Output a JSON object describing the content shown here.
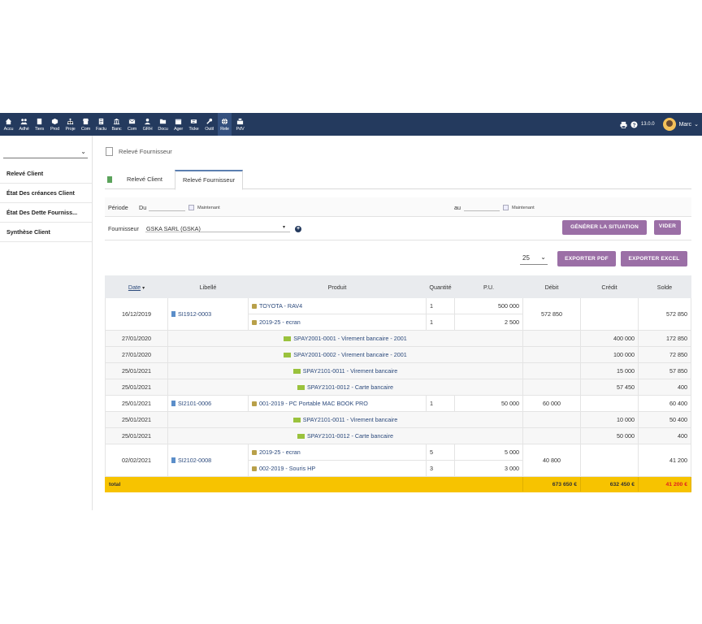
{
  "nav": {
    "items": [
      {
        "label": "Accu",
        "icon": "home-icon"
      },
      {
        "label": "Adhé",
        "icon": "members-icon"
      },
      {
        "label": "Tiers",
        "icon": "building-icon"
      },
      {
        "label": "Prod",
        "icon": "cube-icon"
      },
      {
        "label": "Proje",
        "icon": "sitemap-icon"
      },
      {
        "label": "Com",
        "icon": "shop-icon"
      },
      {
        "label": "Factu",
        "icon": "invoice-icon"
      },
      {
        "label": "Banc",
        "icon": "bank-icon"
      },
      {
        "label": "Com",
        "icon": "mail-icon"
      },
      {
        "label": "GRH",
        "icon": "user-icon"
      },
      {
        "label": "Docu",
        "icon": "folder-icon"
      },
      {
        "label": "Ager",
        "icon": "calendar-icon"
      },
      {
        "label": "Ticke",
        "icon": "ticket-icon"
      },
      {
        "label": "Outil",
        "icon": "wrench-icon"
      },
      {
        "label": "Rele",
        "icon": "globe-icon",
        "active": true
      },
      {
        "label": "PdV",
        "icon": "cash-register-icon"
      }
    ],
    "version": "13.0.0",
    "user": "Marc"
  },
  "sidebar": {
    "select_value": "",
    "items": [
      {
        "label": "Relevé Client"
      },
      {
        "label": "État Des créances Client"
      },
      {
        "label": "État Des Dette Fourniss..."
      },
      {
        "label": "Synthèse Client"
      }
    ]
  },
  "breadcrumb": {
    "title": "Relevé Fournisseur"
  },
  "tabs": [
    {
      "label": "Relevé Client"
    },
    {
      "label": "Relevé Fournisseur",
      "active": true
    }
  ],
  "filters": {
    "periode_label": "Période",
    "du_label": "Du",
    "du_now": "Maintenant",
    "au_label": "au",
    "au_now": "Maintenant",
    "fournisseur_label": "Fournisseur",
    "fournisseur_value": "GSKA SARL (GSKA)",
    "generate_label": "GÉNÉRER LA SITUATION",
    "clear_label": "VIDER"
  },
  "toolbar": {
    "page_size": "25",
    "export_pdf": "EXPORTER PDF",
    "export_excel": "EXPORTER EXCEL"
  },
  "table": {
    "headers": {
      "date": "Date",
      "libelle": "Libellé",
      "produit": "Produit",
      "quantite": "Quantité",
      "pu": "P.U.",
      "debit": "Débit",
      "credit": "Crédit",
      "solde": "Solde"
    },
    "rows": [
      {
        "date": "16/12/2019",
        "libelle": "SI1912-0003",
        "debit": "572 850",
        "credit": "",
        "solde": "572 850",
        "lines": [
          {
            "produit": "TOYOTA - RAV4",
            "quantite": "1",
            "pu": "500 000"
          },
          {
            "produit": "2019-25 - ecran",
            "quantite": "1",
            "pu": "2 500"
          }
        ]
      },
      {
        "date": "27/01/2020",
        "payment": "SPAY2001-0001 - Virement bancaire - 2001",
        "debit": "",
        "credit": "400 000",
        "solde": "172 850"
      },
      {
        "date": "27/01/2020",
        "payment": "SPAY2001-0002 - Virement bancaire - 2001",
        "debit": "",
        "credit": "100 000",
        "solde": "72 850"
      },
      {
        "date": "25/01/2021",
        "payment": "SPAY2101-0011 - Virement bancaire",
        "debit": "",
        "credit": "15 000",
        "solde": "57 850"
      },
      {
        "date": "25/01/2021",
        "payment": "SPAY2101-0012 - Carte bancaire",
        "debit": "",
        "credit": "57 450",
        "solde": "400"
      },
      {
        "date": "25/01/2021",
        "libelle": "SI2101-0006",
        "debit": "60 000",
        "credit": "",
        "solde": "60 400",
        "lines": [
          {
            "produit": "001-2019 - PC Portable MAC BOOK PRO",
            "quantite": "1",
            "pu": "50 000"
          }
        ]
      },
      {
        "date": "25/01/2021",
        "payment": "SPAY2101-0011 - Virement bancaire",
        "debit": "",
        "credit": "10 000",
        "solde": "50 400"
      },
      {
        "date": "25/01/2021",
        "payment": "SPAY2101-0012 - Carte bancaire",
        "debit": "",
        "credit": "50 000",
        "solde": "400"
      },
      {
        "date": "02/02/2021",
        "libelle": "SI2102-0008",
        "debit": "40 800",
        "credit": "",
        "solde": "41 200",
        "lines": [
          {
            "produit": "2019-25 - ecran",
            "quantite": "5",
            "pu": "5 000"
          },
          {
            "produit": "002-2019 - Souris HP",
            "quantite": "3",
            "pu": "3 000"
          }
        ]
      }
    ],
    "total": {
      "label": "total",
      "debit": "673 650 €",
      "credit": "632 450 €",
      "solde": "41 200 €"
    }
  },
  "colors": {
    "navbar": "#243a5e",
    "accent_button": "#9b6fa6",
    "total_row": "#f7c300",
    "negative_text": "#e02020"
  }
}
